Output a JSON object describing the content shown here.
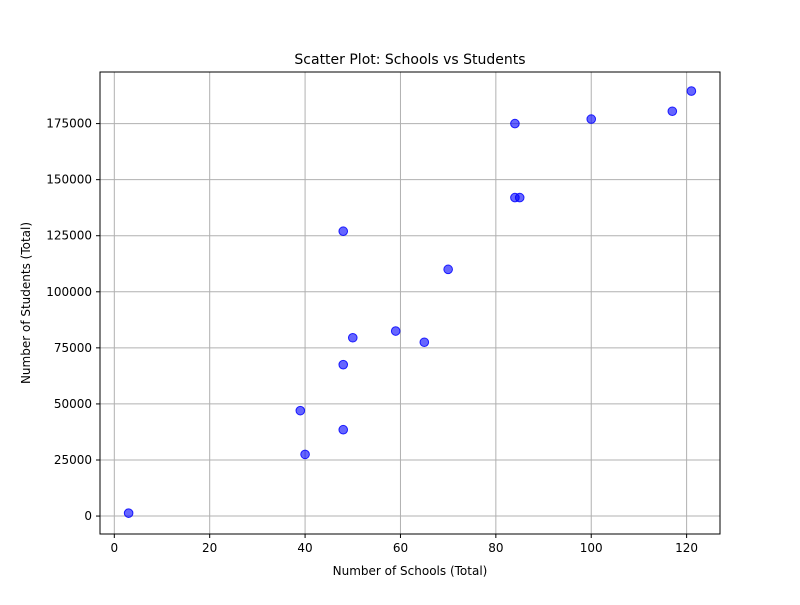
{
  "chart_data": {
    "type": "scatter",
    "title": "Scatter Plot: Schools vs Students",
    "xlabel": "Number of Schools (Total)",
    "ylabel": "Number of Students (Total)",
    "xlim": [
      -3,
      127
    ],
    "ylim": [
      -8000,
      198000
    ],
    "xticks": [
      0,
      20,
      40,
      60,
      80,
      100,
      120
    ],
    "xtick_labels": [
      "0",
      "20",
      "40",
      "60",
      "80",
      "100",
      "120"
    ],
    "yticks": [
      0,
      25000,
      50000,
      75000,
      100000,
      125000,
      150000,
      175000
    ],
    "ytick_labels": [
      "0",
      "25000",
      "50000",
      "75000",
      "100000",
      "125000",
      "150000",
      "175000"
    ],
    "grid": true,
    "marker_color": "#0000ff",
    "marker_alpha": 0.6,
    "points": [
      {
        "x": 3,
        "y": 1300
      },
      {
        "x": 39,
        "y": 47000
      },
      {
        "x": 40,
        "y": 27500
      },
      {
        "x": 48,
        "y": 38500
      },
      {
        "x": 48,
        "y": 67500
      },
      {
        "x": 48,
        "y": 127000
      },
      {
        "x": 50,
        "y": 79500
      },
      {
        "x": 59,
        "y": 82500
      },
      {
        "x": 65,
        "y": 77500
      },
      {
        "x": 70,
        "y": 110000
      },
      {
        "x": 84,
        "y": 142000
      },
      {
        "x": 85,
        "y": 142000
      },
      {
        "x": 84,
        "y": 175000
      },
      {
        "x": 100,
        "y": 177000
      },
      {
        "x": 117,
        "y": 180500
      },
      {
        "x": 121,
        "y": 189500
      }
    ]
  }
}
